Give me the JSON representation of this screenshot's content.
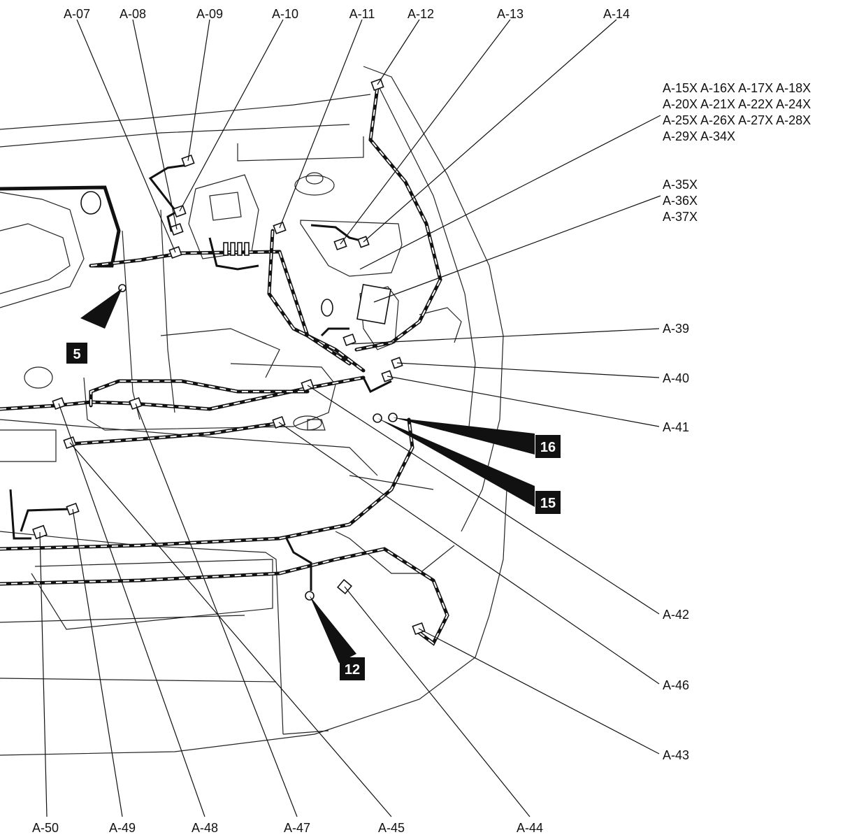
{
  "labels": {
    "a07": "A-07",
    "a08": "A-08",
    "a09": "A-09",
    "a10": "A-10",
    "a11": "A-11",
    "a12": "A-12",
    "a13": "A-13",
    "a14": "A-14",
    "a15_line1": "A-15X A-16X A-17X A-18X",
    "a15_line2": "A-20X A-21X A-22X A-24X",
    "a15_line3": "A-25X A-26X A-27X A-28X",
    "a15_line4": "A-29X A-34X",
    "a35": "A-35X",
    "a36": "A-36X",
    "a37": "A-37X",
    "a39": "A-39",
    "a40": "A-40",
    "a41": "A-41",
    "a42": "A-42",
    "a46": "A-46",
    "a43": "A-43",
    "a50": "A-50",
    "a49": "A-49",
    "a48": "A-48",
    "a47": "A-47",
    "a45": "A-45",
    "a44": "A-44"
  },
  "badges": {
    "b5": "5",
    "b16": "16",
    "b15": "15",
    "b12": "12"
  }
}
